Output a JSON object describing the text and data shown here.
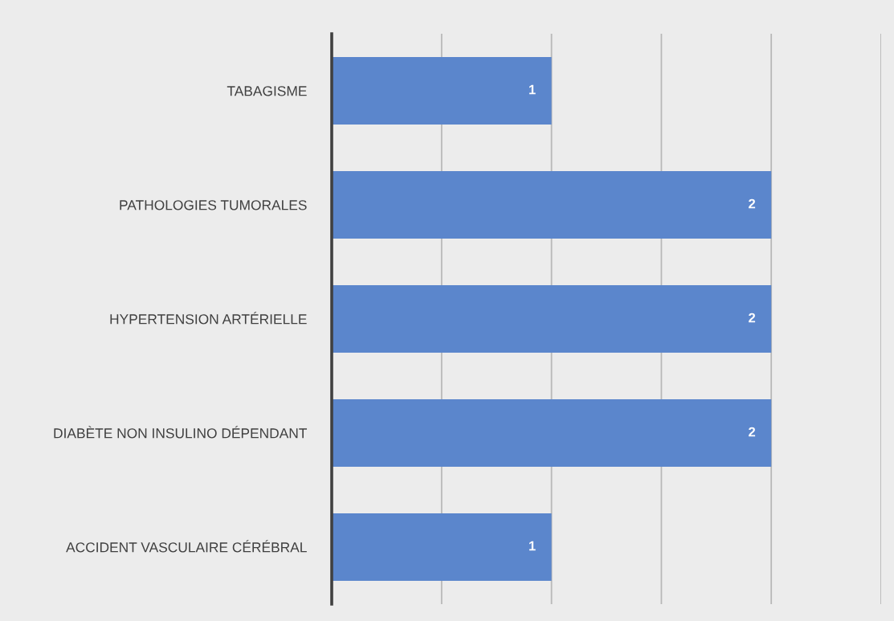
{
  "chart_data": {
    "type": "bar",
    "orientation": "horizontal",
    "categories": [
      "TABAGISME",
      "PATHOLOGIES TUMORALES",
      "HYPERTENSION ARTÉRIELLE",
      "DIABÈTE NON INSULINO DÉPENDANT",
      "ACCIDENT VASCULAIRE CÉRÉBRAL"
    ],
    "values": [
      1,
      2,
      2,
      2,
      1
    ],
    "color": "#5b86cc",
    "xlim": [
      0,
      2.5
    ],
    "xticks": [
      {
        "value": 0,
        "label": null
      },
      {
        "value": 0.5,
        "label": null
      },
      {
        "value": 1,
        "label": null
      },
      {
        "value": 1.5,
        "label": null
      },
      {
        "value": 2,
        "label": null
      },
      {
        "value": 2.5,
        "label": null
      }
    ],
    "grid": "x",
    "data_labels": true,
    "tick_labels": "y"
  }
}
